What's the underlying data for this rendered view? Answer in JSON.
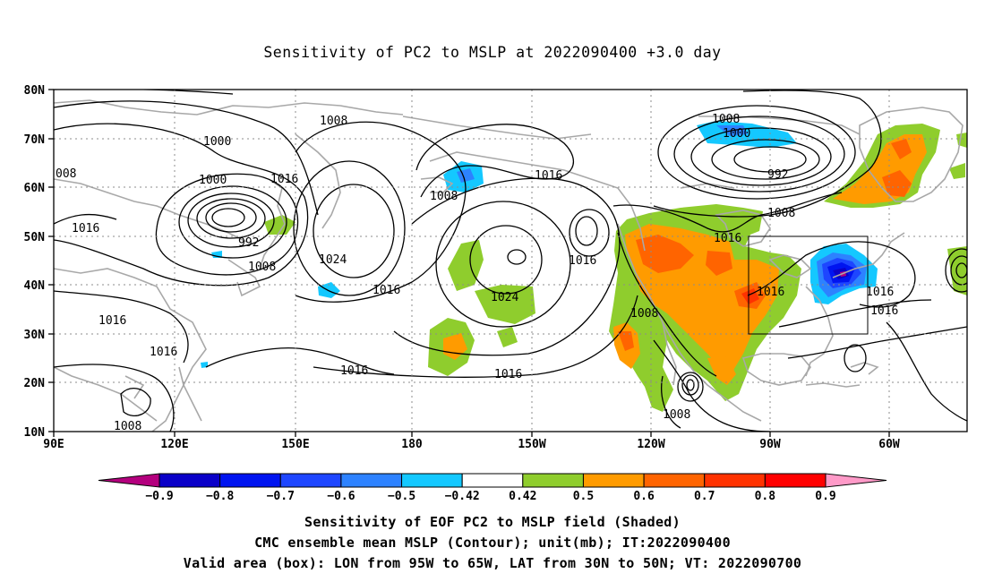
{
  "title": "Sensitivity of PC2 to MSLP at 2022090400 +3.0 day",
  "lat_axis": [
    "80N",
    "70N",
    "60N",
    "50N",
    "40N",
    "30N",
    "20N",
    "10N"
  ],
  "lon_axis": [
    "90E",
    "120E",
    "150E",
    "180",
    "150W",
    "120W",
    "90W",
    "60W"
  ],
  "contour_labels": {
    "c1008_top": "1008",
    "c1000_w": "1000",
    "c008": "008",
    "c1000_sw": "1000",
    "c1016_a": "1016",
    "c1016_b": "1016",
    "c992_w": "992",
    "c1008_b": "1008",
    "c1024_a": "1024",
    "c1008_c": "1008",
    "c1016_c": "1016",
    "c1016_d": "1016",
    "c1024_b": "1024",
    "c1016_e": "1016",
    "c1016_f": "1016",
    "c1016_g": "1016",
    "c1016_h": "1016",
    "c1008_d": "1008",
    "c1016_i": "1016",
    "c1008_e": "1008",
    "c1016_j": "1016",
    "c1016_k": "1016",
    "c1016_l": "1016",
    "c1008_f": "1008",
    "c1000_e": "1000",
    "c992_e": "992",
    "c1008_g": "1008",
    "c1008_h": "1008"
  },
  "colorbar": {
    "labels": [
      "-0.9",
      "-0.8",
      "-0.7",
      "-0.6",
      "-0.5",
      "-0.42",
      "0.42",
      "0.5",
      "0.6",
      "0.7",
      "0.8",
      "0.9"
    ],
    "colors": [
      "#b4007e",
      "#0a00c8",
      "#0014f0",
      "#1e46ff",
      "#2d82ff",
      "#14c8ff",
      "#ffffff",
      "#8fcd2d",
      "#ff9b00",
      "#ff6400",
      "#ff3200",
      "#ff0000",
      "#ff9ac8"
    ]
  },
  "captions": [
    "Sensitivity of EOF PC2 to MSLP field (Shaded)",
    "CMC ensemble mean MSLP (Contour); unit(mb); IT:2022090400",
    "Valid area (box): LON from 95W to 65W, LAT from 30N to 50N; VT: 2022090700"
  ]
}
